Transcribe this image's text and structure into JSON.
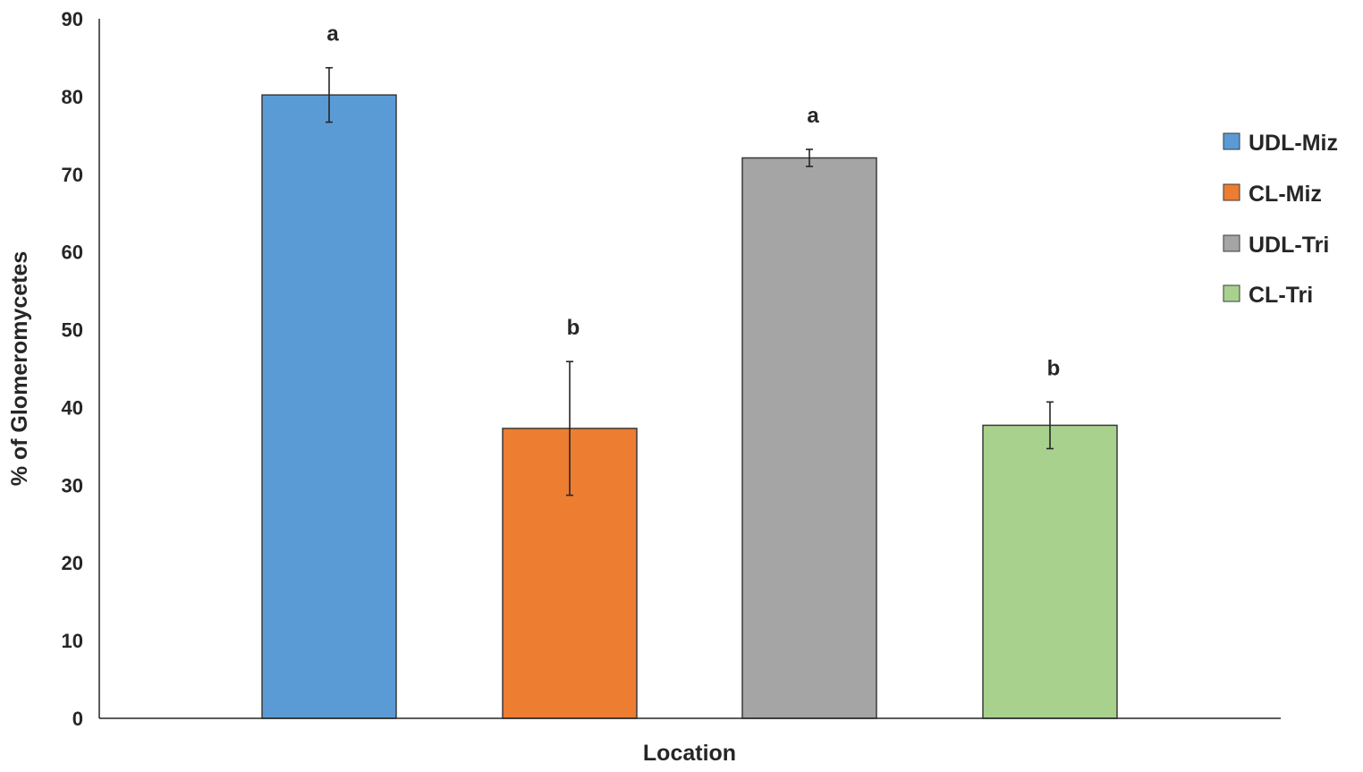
{
  "chart_data": {
    "type": "bar",
    "xlabel": "Location",
    "ylabel": "% of Glomeromycetes",
    "ylim": [
      0,
      90
    ],
    "yticks": [
      0,
      10,
      20,
      30,
      40,
      50,
      60,
      70,
      80,
      90
    ],
    "grid": false,
    "legend_position": "right",
    "series": [
      {
        "name": "UDL-Miz",
        "value": 80.2,
        "error": 3.5,
        "sig_letter": "a",
        "color": "#5b9bd5"
      },
      {
        "name": "CL-Miz",
        "value": 37.3,
        "error": 8.6,
        "sig_letter": "b",
        "color": "#ed7d31"
      },
      {
        "name": "UDL-Tri",
        "value": 72.1,
        "error": 1.1,
        "sig_letter": "a",
        "color": "#a5a5a5"
      },
      {
        "name": "CL-Tri",
        "value": 37.7,
        "error": 3.0,
        "sig_letter": "b",
        "color": "#a9d18e"
      }
    ]
  }
}
